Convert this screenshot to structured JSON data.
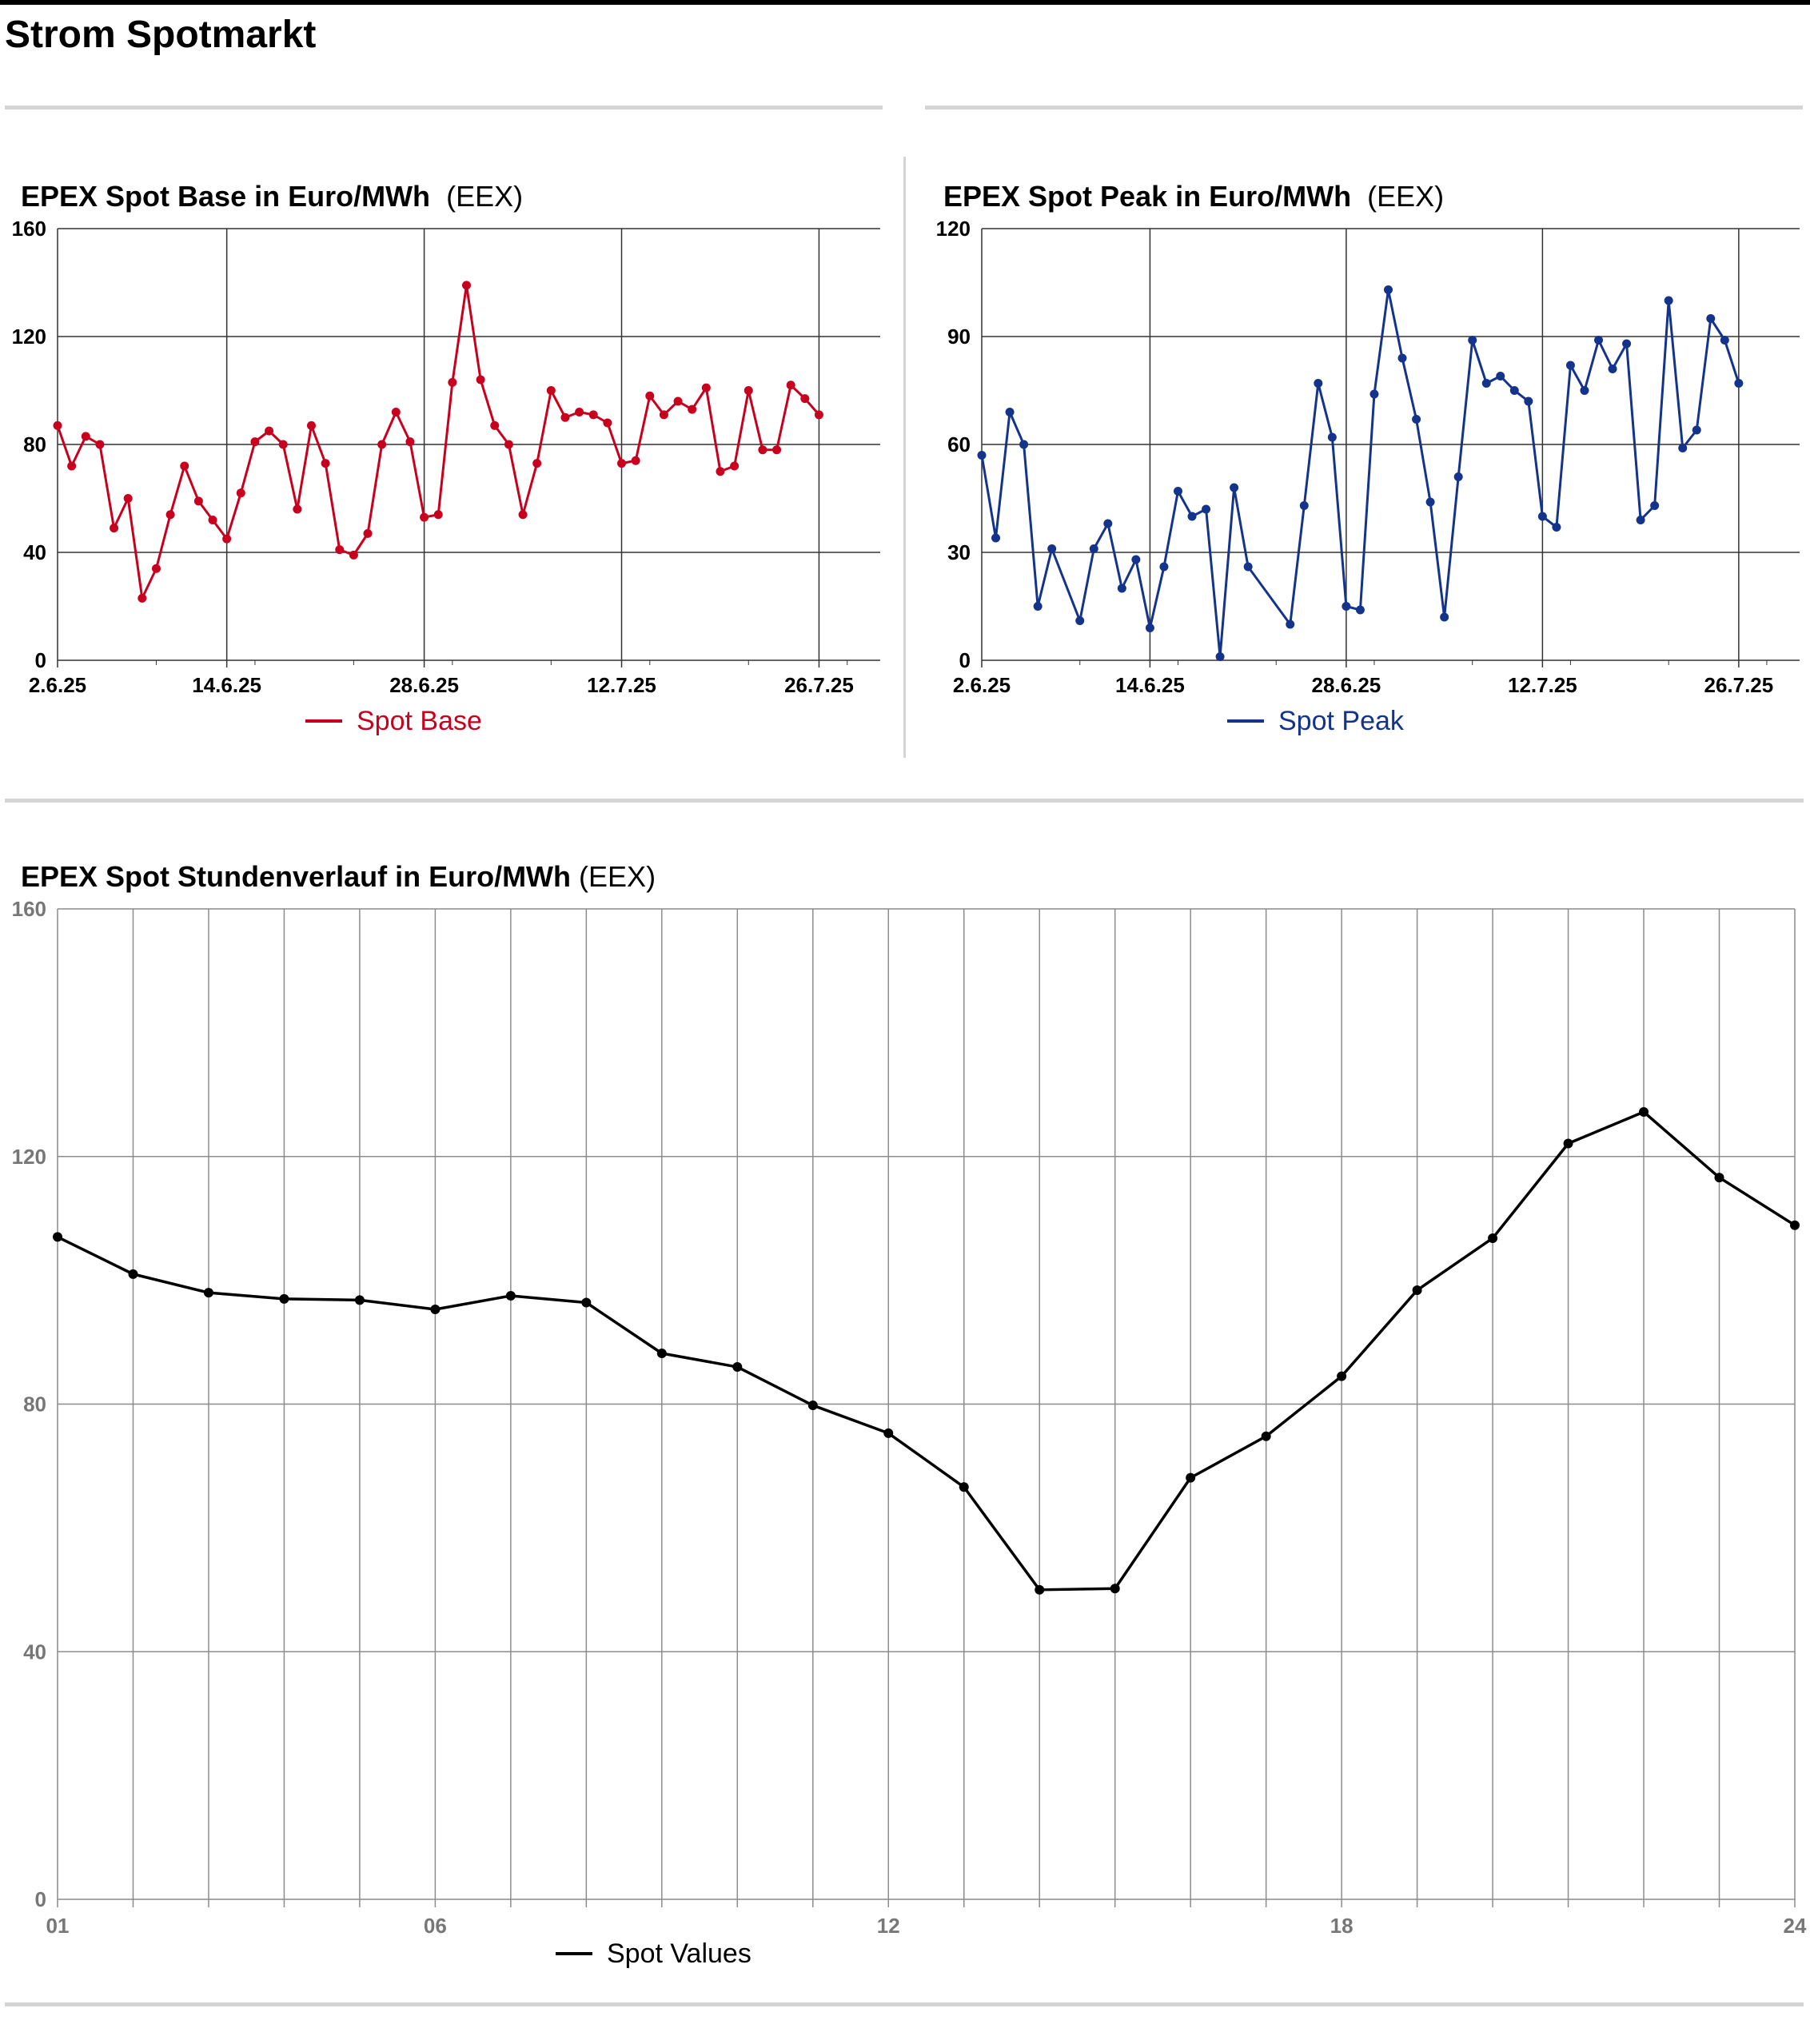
{
  "page": {
    "title": "Strom Spotmarkt"
  },
  "colors": {
    "base": "#c8001e",
    "peak": "#14348c",
    "hourly": "#000000",
    "grid": "#333333",
    "grid_light": "#999999",
    "separator": "#d4d4d4"
  },
  "chart_data": [
    {
      "id": "base",
      "type": "line",
      "title": "EPEX Spot Base in Euro/MWh",
      "source": "(EEX)",
      "xlabel": "",
      "ylabel": "",
      "ylim": [
        0,
        160
      ],
      "y_ticks": [
        "0",
        "40",
        "80",
        "120",
        "160"
      ],
      "x_ticks": [
        "2.6.25",
        "14.6.25",
        "28.6.25",
        "12.7.25",
        "26.7.25"
      ],
      "x_tick_dates": [
        "2025-06-02",
        "2025-06-14",
        "2025-06-28",
        "2025-07-12",
        "2025-07-26"
      ],
      "xlim": [
        "2025-06-02",
        "2025-07-30"
      ],
      "grid": true,
      "legend": "bottom-center",
      "series": [
        {
          "name": "Spot Base",
          "points": [
            [
              "2025-06-02",
              87
            ],
            [
              "2025-06-03",
              72
            ],
            [
              "2025-06-04",
              83
            ],
            [
              "2025-06-05",
              80
            ],
            [
              "2025-06-06",
              49
            ],
            [
              "2025-06-07",
              60
            ],
            [
              "2025-06-08",
              23
            ],
            [
              "2025-06-09",
              34
            ],
            [
              "2025-06-10",
              54
            ],
            [
              "2025-06-11",
              72
            ],
            [
              "2025-06-12",
              59
            ],
            [
              "2025-06-13",
              52
            ],
            [
              "2025-06-14",
              45
            ],
            [
              "2025-06-15",
              62
            ],
            [
              "2025-06-16",
              81
            ],
            [
              "2025-06-17",
              85
            ],
            [
              "2025-06-18",
              80
            ],
            [
              "2025-06-19",
              56
            ],
            [
              "2025-06-20",
              87
            ],
            [
              "2025-06-21",
              73
            ],
            [
              "2025-06-22",
              41
            ],
            [
              "2025-06-23",
              39
            ],
            [
              "2025-06-24",
              47
            ],
            [
              "2025-06-25",
              80
            ],
            [
              "2025-06-26",
              92
            ],
            [
              "2025-06-27",
              81
            ],
            [
              "2025-06-28",
              53
            ],
            [
              "2025-06-29",
              54
            ],
            [
              "2025-06-30",
              103
            ],
            [
              "2025-07-01",
              139
            ],
            [
              "2025-07-02",
              104
            ],
            [
              "2025-07-03",
              87
            ],
            [
              "2025-07-04",
              80
            ],
            [
              "2025-07-05",
              54
            ],
            [
              "2025-07-06",
              73
            ],
            [
              "2025-07-07",
              100
            ],
            [
              "2025-07-08",
              90
            ],
            [
              "2025-07-09",
              92
            ],
            [
              "2025-07-10",
              91
            ],
            [
              "2025-07-11",
              88
            ],
            [
              "2025-07-12",
              73
            ],
            [
              "2025-07-13",
              74
            ],
            [
              "2025-07-14",
              98
            ],
            [
              "2025-07-15",
              91
            ],
            [
              "2025-07-16",
              96
            ],
            [
              "2025-07-17",
              93
            ],
            [
              "2025-07-18",
              101
            ],
            [
              "2025-07-19",
              70
            ],
            [
              "2025-07-20",
              72
            ],
            [
              "2025-07-21",
              100
            ],
            [
              "2025-07-22",
              78
            ],
            [
              "2025-07-23",
              78
            ],
            [
              "2025-07-24",
              102
            ],
            [
              "2025-07-25",
              97
            ],
            [
              "2025-07-26",
              91
            ]
          ]
        }
      ]
    },
    {
      "id": "peak",
      "type": "line",
      "title": "EPEX Spot Peak in Euro/MWh",
      "source": "(EEX)",
      "xlabel": "",
      "ylabel": "",
      "ylim": [
        0,
        120
      ],
      "y_ticks": [
        "0",
        "30",
        "60",
        "90",
        "120"
      ],
      "x_ticks": [
        "2.6.25",
        "14.6.25",
        "28.6.25",
        "12.7.25",
        "26.7.25"
      ],
      "x_tick_dates": [
        "2025-06-02",
        "2025-06-14",
        "2025-06-28",
        "2025-07-12",
        "2025-07-26"
      ],
      "xlim": [
        "2025-06-02",
        "2025-07-30"
      ],
      "grid": true,
      "legend": "bottom-center",
      "series": [
        {
          "name": "Spot Peak",
          "points": [
            [
              "2025-06-02",
              57
            ],
            [
              "2025-06-03",
              34
            ],
            [
              "2025-06-04",
              69
            ],
            [
              "2025-06-05",
              60
            ],
            [
              "2025-06-06",
              15
            ],
            [
              "2025-06-07",
              31
            ],
            [
              "2025-06-09",
              11
            ],
            [
              "2025-06-10",
              31
            ],
            [
              "2025-06-11",
              38
            ],
            [
              "2025-06-12",
              20
            ],
            [
              "2025-06-13",
              28
            ],
            [
              "2025-06-14",
              9
            ],
            [
              "2025-06-15",
              26
            ],
            [
              "2025-06-16",
              47
            ],
            [
              "2025-06-17",
              40
            ],
            [
              "2025-06-18",
              42
            ],
            [
              "2025-06-19",
              1
            ],
            [
              "2025-06-20",
              48
            ],
            [
              "2025-06-21",
              26
            ],
            [
              "2025-06-24",
              10
            ],
            [
              "2025-06-25",
              43
            ],
            [
              "2025-06-26",
              77
            ],
            [
              "2025-06-27",
              62
            ],
            [
              "2025-06-28",
              15
            ],
            [
              "2025-06-29",
              14
            ],
            [
              "2025-06-30",
              74
            ],
            [
              "2025-07-01",
              103
            ],
            [
              "2025-07-02",
              84
            ],
            [
              "2025-07-03",
              67
            ],
            [
              "2025-07-04",
              44
            ],
            [
              "2025-07-05",
              12
            ],
            [
              "2025-07-06",
              51
            ],
            [
              "2025-07-07",
              89
            ],
            [
              "2025-07-08",
              77
            ],
            [
              "2025-07-09",
              79
            ],
            [
              "2025-07-10",
              75
            ],
            [
              "2025-07-11",
              72
            ],
            [
              "2025-07-12",
              40
            ],
            [
              "2025-07-13",
              37
            ],
            [
              "2025-07-14",
              82
            ],
            [
              "2025-07-15",
              75
            ],
            [
              "2025-07-16",
              89
            ],
            [
              "2025-07-17",
              81
            ],
            [
              "2025-07-18",
              88
            ],
            [
              "2025-07-19",
              39
            ],
            [
              "2025-07-20",
              43
            ],
            [
              "2025-07-21",
              100
            ],
            [
              "2025-07-22",
              59
            ],
            [
              "2025-07-23",
              64
            ],
            [
              "2025-07-24",
              95
            ],
            [
              "2025-07-25",
              89
            ],
            [
              "2025-07-26",
              77
            ]
          ]
        }
      ]
    },
    {
      "id": "hourly",
      "type": "line",
      "title": "EPEX Spot Stundenverlauf in Euro/MWh",
      "source": "(EEX)",
      "xlabel": "",
      "ylabel": "",
      "ylim": [
        0,
        160
      ],
      "xlim": [
        1,
        24
      ],
      "y_ticks": [
        "0",
        "40",
        "80",
        "120",
        "160"
      ],
      "x_ticks": [
        {
          "label": "01",
          "hour": 1
        },
        {
          "label": "06",
          "hour": 6
        },
        {
          "label": "12",
          "hour": 12
        },
        {
          "label": "18",
          "hour": 18
        },
        {
          "label": "24",
          "hour": 24
        }
      ],
      "grid": true,
      "legend": "bottom-center",
      "series": [
        {
          "name": "Spot Values",
          "x": [
            1,
            2,
            3,
            4,
            5,
            6,
            7,
            8,
            9,
            10,
            11,
            12,
            13,
            14,
            15,
            16,
            17,
            18,
            19,
            20,
            21,
            22,
            23,
            24
          ],
          "values": [
            107,
            101,
            98,
            97,
            96.8,
            95.3,
            97.5,
            96.4,
            88.2,
            86,
            79.8,
            75.3,
            66.6,
            50,
            50.2,
            68.1,
            74.8,
            84.5,
            98.4,
            106.8,
            122.1,
            127.2,
            116.6,
            108.9
          ]
        }
      ]
    }
  ]
}
